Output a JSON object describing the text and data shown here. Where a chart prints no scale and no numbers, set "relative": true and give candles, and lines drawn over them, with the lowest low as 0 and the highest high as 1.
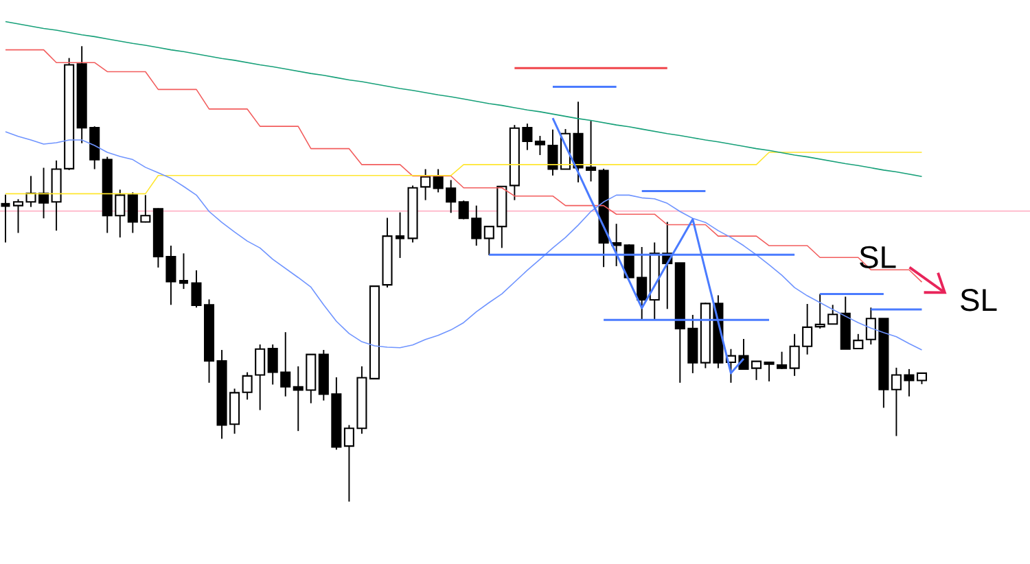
{
  "chart_data": {
    "type": "candlestick",
    "relative": true,
    "categories": [
      null,
      null,
      null,
      null,
      null,
      null,
      null,
      null,
      null,
      null,
      null,
      null,
      null,
      null,
      null,
      null,
      null,
      null,
      null,
      null,
      null,
      null,
      null,
      null,
      null,
      null,
      null,
      null,
      null,
      null,
      null,
      null,
      null,
      null,
      null,
      null,
      null,
      null,
      null,
      null,
      null,
      null,
      null,
      null,
      null,
      null,
      null,
      null,
      null,
      null,
      null,
      null,
      null,
      null,
      null,
      null,
      null,
      null,
      null,
      null,
      null,
      null,
      null,
      null,
      null,
      null,
      null,
      null,
      null,
      null,
      null,
      null,
      null
    ],
    "ohlc": [
      [
        0.653,
        0.674,
        0.569,
        0.65
      ],
      [
        0.65,
        0.664,
        0.59,
        0.658
      ],
      [
        0.658,
        0.715,
        0.647,
        0.677
      ],
      [
        0.677,
        0.733,
        0.622,
        0.656
      ],
      [
        0.658,
        0.749,
        0.595,
        0.73
      ],
      [
        0.731,
        0.974,
        0.728,
        0.959
      ],
      [
        0.961,
        1.0,
        0.787,
        0.821
      ],
      [
        0.821,
        0.824,
        0.73,
        0.751
      ],
      [
        0.751,
        0.757,
        0.59,
        0.628
      ],
      [
        0.628,
        0.685,
        0.58,
        0.673
      ],
      [
        0.673,
        0.679,
        0.59,
        0.614
      ],
      [
        0.614,
        0.673,
        0.613,
        0.628
      ],
      [
        0.643,
        0.644,
        0.514,
        0.538
      ],
      [
        0.538,
        0.562,
        0.432,
        0.483
      ],
      [
        0.483,
        0.545,
        0.467,
        0.482
      ],
      [
        0.48,
        0.508,
        0.426,
        0.431
      ],
      [
        0.432,
        0.444,
        0.261,
        0.309
      ],
      [
        0.309,
        0.333,
        0.138,
        0.168
      ],
      [
        0.17,
        0.248,
        0.149,
        0.239
      ],
      [
        0.24,
        0.284,
        0.224,
        0.276
      ],
      [
        0.278,
        0.345,
        0.201,
        0.335
      ],
      [
        0.336,
        0.345,
        0.257,
        0.284
      ],
      [
        0.284,
        0.372,
        0.231,
        0.252
      ],
      [
        0.252,
        0.297,
        0.155,
        0.245
      ],
      [
        0.245,
        0.323,
        0.216,
        0.323
      ],
      [
        0.323,
        0.333,
        0.222,
        0.236
      ],
      [
        0.236,
        0.273,
        0.114,
        0.12
      ],
      [
        0.122,
        0.168,
        0,
        0.161
      ],
      [
        0.161,
        0.297,
        0.149,
        0.272
      ],
      [
        0.27,
        0.474,
        0.269,
        0.473
      ],
      [
        0.476,
        0.623,
        0.47,
        0.583
      ],
      [
        0.581,
        0.635,
        0.535,
        0.58
      ],
      [
        0.578,
        0.694,
        0.569,
        0.689
      ],
      [
        0.691,
        0.73,
        0.662,
        0.713
      ],
      [
        0.715,
        0.73,
        0.679,
        0.688
      ],
      [
        0.688,
        0.706,
        0.634,
        0.658
      ],
      [
        0.658,
        0.661,
        0.62,
        0.622
      ],
      [
        0.622,
        0.65,
        0.562,
        0.578
      ],
      [
        0.578,
        0.605,
        0.541,
        0.604
      ],
      [
        0.604,
        0.692,
        0.557,
        0.692
      ],
      [
        0.694,
        0.827,
        0.662,
        0.82
      ],
      [
        0.821,
        0.83,
        0.772,
        0.791
      ],
      [
        0.791,
        0.803,
        0.761,
        0.784
      ],
      [
        0.782,
        0.817,
        0.716,
        0.73
      ],
      [
        0.73,
        0.818,
        0.73,
        0.808
      ],
      [
        0.808,
        0.878,
        0.701,
        0.733
      ],
      [
        0.734,
        0.836,
        0.703,
        0.728
      ],
      [
        0.727,
        0.731,
        0.515,
        0.568
      ],
      [
        0.568,
        0.61,
        0.517,
        0.563
      ],
      [
        0.563,
        0.565,
        0.492,
        0.492
      ],
      [
        0.492,
        0.559,
        0.399,
        0.443
      ],
      [
        0.443,
        0.569,
        0.399,
        0.545
      ],
      [
        0.545,
        0.614,
        0.423,
        0.523
      ],
      [
        0.524,
        0.524,
        0.261,
        0.38
      ],
      [
        0.38,
        0.41,
        0.282,
        0.305
      ],
      [
        0.305,
        0.437,
        0.293,
        0.435
      ],
      [
        0.435,
        0.453,
        0.293,
        0.305
      ],
      [
        0.306,
        0.335,
        0.261,
        0.32
      ],
      [
        0.32,
        0.357,
        0.29,
        0.291
      ],
      [
        0.293,
        0.309,
        0.267,
        0.308
      ],
      [
        0.306,
        0.306,
        0.264,
        0.302
      ],
      [
        0.3,
        0.329,
        0.291,
        0.293
      ],
      [
        0.293,
        0.368,
        0.276,
        0.341
      ],
      [
        0.341,
        0.434,
        0.323,
        0.383
      ],
      [
        0.384,
        0.456,
        0.38,
        0.389
      ],
      [
        0.39,
        0.432,
        0.39,
        0.411
      ],
      [
        0.413,
        0.45,
        0.335,
        0.335
      ],
      [
        0.336,
        0.368,
        0.336,
        0.354
      ],
      [
        0.356,
        0.426,
        0.345,
        0.402
      ],
      [
        0.402,
        0.402,
        0.206,
        0.246
      ],
      [
        0.246,
        0.294,
        0.144,
        0.278
      ],
      [
        0.278,
        0.291,
        0.231,
        0.266
      ],
      [
        0.266,
        0.282,
        0.258,
        0.282
      ]
    ],
    "series": [
      {
        "type": "line",
        "color": "#f25c5c",
        "values": [
          0.992,
          0.992,
          0.992,
          0.992,
          0.964,
          0.964,
          0.964,
          0.964,
          0.944,
          0.944,
          0.944,
          0.944,
          0.905,
          0.905,
          0.905,
          0.905,
          0.862,
          0.862,
          0.862,
          0.862,
          0.824,
          0.824,
          0.824,
          0.824,
          0.775,
          0.775,
          0.775,
          0.775,
          0.74,
          0.74,
          0.74,
          0.74,
          0.715,
          0.715,
          0.715,
          0.715,
          0.689,
          0.689,
          0.689,
          0.689,
          0.671,
          0.671,
          0.671,
          0.671,
          0.65,
          0.65,
          0.65,
          0.65,
          0.631,
          0.631,
          0.631,
          0.631,
          0.608,
          0.608,
          0.608,
          0.608,
          0.583,
          0.583,
          0.583,
          0.583,
          0.562,
          0.562,
          0.562,
          0.562,
          0.536,
          0.536,
          0.536,
          0.536,
          0.509,
          0.509,
          0.509,
          0.509,
          0.482
        ]
      },
      {
        "type": "line",
        "color": "#ffe62e",
        "values": [
          0.676,
          0.676,
          0.676,
          0.676,
          0.676,
          0.676,
          0.676,
          0.676,
          0.676,
          0.676,
          0.676,
          0.676,
          0.716,
          0.716,
          0.716,
          0.716,
          0.716,
          0.716,
          0.716,
          0.716,
          0.716,
          0.716,
          0.716,
          0.716,
          0.716,
          0.716,
          0.716,
          0.716,
          0.716,
          0.716,
          0.716,
          0.716,
          0.716,
          0.716,
          0.716,
          0.716,
          0.74,
          0.74,
          0.74,
          0.74,
          0.74,
          0.74,
          0.74,
          0.74,
          0.74,
          0.74,
          0.74,
          0.74,
          0.74,
          0.74,
          0.74,
          0.74,
          0.74,
          0.74,
          0.74,
          0.74,
          0.74,
          0.74,
          0.74,
          0.74,
          0.767,
          0.767,
          0.767,
          0.767,
          0.767,
          0.767,
          0.767,
          0.767,
          0.767,
          0.767,
          0.767,
          0.767,
          0.767
        ]
      },
      {
        "type": "line",
        "color": "#6f94ff",
        "values": [
          0.812,
          0.802,
          0.794,
          0.785,
          0.788,
          0.794,
          0.794,
          0.782,
          0.767,
          0.758,
          0.751,
          0.734,
          0.722,
          0.71,
          0.692,
          0.673,
          0.637,
          0.613,
          0.592,
          0.572,
          0.557,
          0.532,
          0.512,
          0.492,
          0.471,
          0.432,
          0.396,
          0.369,
          0.351,
          0.342,
          0.339,
          0.338,
          0.344,
          0.356,
          0.365,
          0.377,
          0.393,
          0.417,
          0.437,
          0.456,
          0.482,
          0.508,
          0.532,
          0.557,
          0.58,
          0.607,
          0.637,
          0.658,
          0.673,
          0.673,
          0.667,
          0.665,
          0.655,
          0.637,
          0.622,
          0.613,
          0.595,
          0.58,
          0.562,
          0.542,
          0.52,
          0.497,
          0.47,
          0.452,
          0.437,
          0.422,
          0.407,
          0.393,
          0.381,
          0.371,
          0.362,
          0.347,
          0.333
        ]
      },
      {
        "type": "line",
        "color": "#17a079",
        "values": [
          1.054,
          1.049,
          1.044,
          1.039,
          1.035,
          1.03,
          1.025,
          1.021,
          1.016,
          1.011,
          1.006,
          1.002,
          0.997,
          0.992,
          0.988,
          0.983,
          0.978,
          0.973,
          0.969,
          0.964,
          0.959,
          0.955,
          0.95,
          0.945,
          0.94,
          0.936,
          0.931,
          0.926,
          0.922,
          0.917,
          0.912,
          0.907,
          0.903,
          0.898,
          0.893,
          0.889,
          0.884,
          0.879,
          0.874,
          0.87,
          0.865,
          0.86,
          0.856,
          0.851,
          0.846,
          0.841,
          0.837,
          0.832,
          0.827,
          0.823,
          0.818,
          0.813,
          0.808,
          0.804,
          0.799,
          0.794,
          0.79,
          0.785,
          0.78,
          0.775,
          0.771,
          0.766,
          0.761,
          0.757,
          0.752,
          0.747,
          0.742,
          0.738,
          0.733,
          0.728,
          0.724,
          0.719,
          0.714
        ]
      },
      {
        "type": "line",
        "color": "#f0454a",
        "values": [
          null,
          null,
          null,
          null,
          null,
          null,
          null,
          null,
          null,
          null,
          null,
          null,
          null,
          null,
          null,
          null,
          null,
          null,
          null,
          null,
          null,
          null,
          null,
          null,
          null,
          null,
          null,
          null,
          null,
          null,
          null,
          null,
          null,
          null,
          null,
          null,
          null,
          null,
          null,
          null,
          0.952,
          0.952,
          0.952,
          0.952,
          0.952,
          0.952,
          0.952,
          0.952,
          0.952,
          0.952,
          0.952,
          0.952,
          0.952,
          null,
          null,
          null,
          null,
          null,
          null,
          null,
          null,
          null,
          null,
          null,
          null,
          null,
          null,
          null,
          null,
          null,
          null,
          null,
          null
        ]
      },
      {
        "type": "line",
        "color": "#4a7bff",
        "values": [
          null,
          null,
          null,
          null,
          null,
          null,
          null,
          null,
          null,
          null,
          null,
          null,
          null,
          null,
          null,
          null,
          null,
          null,
          null,
          null,
          null,
          null,
          null,
          null,
          null,
          null,
          null,
          null,
          null,
          null,
          null,
          null,
          null,
          null,
          null,
          null,
          null,
          null,
          null,
          null,
          null,
          null,
          null,
          0.911,
          0.911,
          0.911,
          0.911,
          0.911,
          0.911,
          null,
          null,
          null,
          null,
          null,
          null,
          null,
          null,
          null,
          null,
          null,
          null,
          null,
          null,
          null,
          null,
          null,
          null,
          null,
          null,
          null,
          null,
          null,
          null
        ]
      },
      {
        "type": "line",
        "color": "#4a7bff",
        "values": [
          null,
          null,
          null,
          null,
          null,
          null,
          null,
          null,
          null,
          null,
          null,
          null,
          null,
          null,
          null,
          null,
          null,
          null,
          null,
          null,
          null,
          null,
          null,
          null,
          null,
          null,
          null,
          null,
          null,
          null,
          null,
          null,
          null,
          null,
          null,
          null,
          null,
          null,
          null,
          null,
          null,
          null,
          null,
          null,
          null,
          null,
          null,
          null,
          null,
          null,
          0.682,
          0.682,
          0.682,
          0.682,
          0.682,
          0.682,
          null,
          null,
          null,
          null,
          null,
          null,
          null,
          null,
          null,
          null,
          null,
          null,
          null,
          null,
          null,
          null,
          null
        ]
      },
      {
        "type": "line",
        "color": "#4a7bff",
        "values": [
          null,
          null,
          null,
          null,
          null,
          null,
          null,
          null,
          null,
          null,
          null,
          null,
          null,
          null,
          null,
          null,
          null,
          null,
          null,
          null,
          null,
          null,
          null,
          null,
          null,
          null,
          null,
          null,
          null,
          null,
          null,
          null,
          null,
          null,
          null,
          null,
          null,
          null,
          0.542,
          0.542,
          0.542,
          0.542,
          0.542,
          0.542,
          0.542,
          0.542,
          0.542,
          0.542,
          0.542,
          0.542,
          0.542,
          0.542,
          0.542,
          0.542,
          0.542,
          0.542,
          0.542,
          0.542,
          0.542,
          0.542,
          0.542,
          0.542,
          0.542,
          null,
          null,
          null,
          null,
          null,
          null,
          null,
          null,
          null,
          null
        ]
      },
      {
        "type": "line",
        "color": "#4a7bff",
        "values": [
          null,
          null,
          null,
          null,
          null,
          null,
          null,
          null,
          null,
          null,
          null,
          null,
          null,
          null,
          null,
          null,
          null,
          null,
          null,
          null,
          null,
          null,
          null,
          null,
          null,
          null,
          null,
          null,
          null,
          null,
          null,
          null,
          null,
          null,
          null,
          null,
          null,
          null,
          null,
          null,
          null,
          null,
          null,
          null,
          null,
          null,
          null,
          0.399,
          0.399,
          0.399,
          0.399,
          0.399,
          0.399,
          0.399,
          0.399,
          0.399,
          0.399,
          0.399,
          0.399,
          0.399,
          0.399,
          null,
          null,
          null,
          null,
          null,
          null,
          null,
          null,
          null,
          null,
          null,
          null
        ]
      },
      {
        "type": "line",
        "color": "#4a7bff",
        "values": [
          null,
          null,
          null,
          null,
          null,
          null,
          null,
          null,
          null,
          null,
          null,
          null,
          null,
          null,
          null,
          null,
          null,
          null,
          null,
          null,
          null,
          null,
          null,
          null,
          null,
          null,
          null,
          null,
          null,
          null,
          null,
          null,
          null,
          null,
          null,
          null,
          null,
          null,
          null,
          null,
          null,
          null,
          null,
          null,
          null,
          null,
          null,
          null,
          null,
          null,
          null,
          null,
          null,
          null,
          null,
          null,
          null,
          null,
          null,
          null,
          null,
          null,
          null,
          null,
          0.456,
          0.456,
          0.456,
          0.456,
          0.456,
          0.456,
          null,
          null,
          null
        ]
      },
      {
        "type": "line",
        "color": "#4a7bff",
        "values": [
          null,
          null,
          null,
          null,
          null,
          null,
          null,
          null,
          null,
          null,
          null,
          null,
          null,
          null,
          null,
          null,
          null,
          null,
          null,
          null,
          null,
          null,
          null,
          null,
          null,
          null,
          null,
          null,
          null,
          null,
          null,
          null,
          null,
          null,
          null,
          null,
          null,
          null,
          null,
          null,
          null,
          null,
          null,
          null,
          null,
          null,
          null,
          null,
          null,
          null,
          null,
          null,
          null,
          null,
          null,
          null,
          null,
          null,
          null,
          null,
          null,
          null,
          null,
          null,
          null,
          null,
          null,
          null,
          0.422,
          0.422,
          0.422,
          0.422,
          0.422
        ]
      },
      {
        "type": "line",
        "color": "#4a7bff",
        "values": [
          null,
          null,
          null,
          null,
          null,
          null,
          null,
          null,
          null,
          null,
          null,
          null,
          null,
          null,
          null,
          null,
          null,
          null,
          null,
          null,
          null,
          null,
          null,
          null,
          null,
          null,
          null,
          null,
          null,
          null,
          null,
          null,
          null,
          null,
          null,
          null,
          null,
          null,
          null,
          null,
          null,
          null,
          null,
          0.842,
          0.782,
          0.723,
          0.663,
          0.604,
          0.544,
          0.485,
          0.425,
          0.474,
          0.523,
          0.571,
          0.62,
          0.507,
          0.395,
          0.282,
          0.314,
          null,
          null,
          null,
          null,
          null,
          null,
          null,
          null,
          null,
          null,
          null,
          null,
          null,
          null
        ]
      }
    ],
    "ref_lines": [
      {
        "axis": "y",
        "value": 0.638,
        "color": "#ffb3c6"
      }
    ],
    "annotations": [
      "SL",
      "SL"
    ]
  }
}
